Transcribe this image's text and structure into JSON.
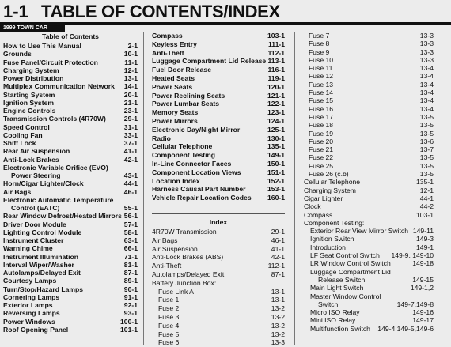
{
  "header": {
    "section": "1-1",
    "title": "TABLE OF CONTENTS/INDEX",
    "vehicle": "1999 TOWN CAR"
  },
  "columns": [
    {
      "sections": [
        {
          "heading": "Table of Contents",
          "entries": [
            {
              "lines": [
                "How to Use This Manual"
              ],
              "page": "2-1"
            },
            {
              "lines": [
                "Grounds"
              ],
              "page": "10-1"
            },
            {
              "lines": [
                "Fuse Panel/Circuit Protection"
              ],
              "page": "11-1"
            },
            {
              "lines": [
                "Charging System"
              ],
              "page": "12-1"
            },
            {
              "lines": [
                "Power Distribution"
              ],
              "page": "13-1"
            },
            {
              "lines": [
                "Multiplex Communication Network"
              ],
              "page": "14-1"
            },
            {
              "lines": [
                "Starting System"
              ],
              "page": "20-1"
            },
            {
              "lines": [
                "Ignition System"
              ],
              "page": "21-1"
            },
            {
              "lines": [
                "Engine Controls"
              ],
              "page": "23-1"
            },
            {
              "lines": [
                "Transmission Controls (4R70W)"
              ],
              "page": "29-1"
            },
            {
              "lines": [
                "Speed Control"
              ],
              "page": "31-1"
            },
            {
              "lines": [
                "Cooling Fan"
              ],
              "page": "33-1"
            },
            {
              "lines": [
                "Shift Lock"
              ],
              "page": "37-1"
            },
            {
              "lines": [
                "Rear Air Suspension"
              ],
              "page": "41-1"
            },
            {
              "lines": [
                "Anti-Lock Brakes"
              ],
              "page": "42-1"
            },
            {
              "lines": [
                "Electronic Variable Orifice (EVO)",
                "Power Steering"
              ],
              "page": "43-1"
            },
            {
              "lines": [
                "Horn/Cigar Lighter/Clock"
              ],
              "page": "44-1"
            },
            {
              "lines": [
                "Air Bags"
              ],
              "page": "46-1"
            },
            {
              "lines": [
                "Electronic Automatic Temperature",
                "Control (EATC)"
              ],
              "page": "55-1"
            },
            {
              "lines": [
                "Rear Window Defrost/Heated Mirrors"
              ],
              "page": "56-1"
            },
            {
              "lines": [
                "Driver Door Module"
              ],
              "page": "57-1"
            },
            {
              "lines": [
                "Lighting Control Module"
              ],
              "page": "58-1"
            },
            {
              "lines": [
                "Instrument Cluster"
              ],
              "page": "63-1"
            },
            {
              "lines": [
                "Warning Chime"
              ],
              "page": "66-1"
            },
            {
              "lines": [
                "Instrument Illumination"
              ],
              "page": "71-1"
            },
            {
              "lines": [
                "Interval Wiper/Washer"
              ],
              "page": "81-1"
            },
            {
              "lines": [
                "Autolamps/Delayed Exit"
              ],
              "page": "87-1"
            },
            {
              "lines": [
                "Courtesy Lamps"
              ],
              "page": "89-1"
            },
            {
              "lines": [
                "Turn/Stop/Hazard Lamps"
              ],
              "page": "90-1"
            },
            {
              "lines": [
                "Cornering Lamps"
              ],
              "page": "91-1"
            },
            {
              "lines": [
                "Exterior Lamps"
              ],
              "page": "92-1"
            },
            {
              "lines": [
                "Reversing Lamps"
              ],
              "page": "93-1"
            },
            {
              "lines": [
                "Power Windows"
              ],
              "page": "100-1"
            },
            {
              "lines": [
                "Roof Opening Panel"
              ],
              "page": "101-1"
            }
          ]
        }
      ]
    },
    {
      "sections": [
        {
          "entries": [
            {
              "lines": [
                "Compass"
              ],
              "page": "103-1"
            },
            {
              "lines": [
                "Keyless Entry"
              ],
              "page": "111-1"
            },
            {
              "lines": [
                "Anti-Theft"
              ],
              "page": "112-1"
            },
            {
              "lines": [
                "Luggage Compartment Lid Release"
              ],
              "page": "113-1"
            },
            {
              "lines": [
                "Fuel Door Release"
              ],
              "page": "116-1"
            },
            {
              "lines": [
                "Heated Seats"
              ],
              "page": "119-1"
            },
            {
              "lines": [
                "Power Seats"
              ],
              "page": "120-1"
            },
            {
              "lines": [
                "Power Reclining Seats"
              ],
              "page": "121-1"
            },
            {
              "lines": [
                "Power Lumbar Seats"
              ],
              "page": "122-1"
            },
            {
              "lines": [
                "Memory Seats"
              ],
              "page": "123-1"
            },
            {
              "lines": [
                "Power Mirrors"
              ],
              "page": "124-1"
            },
            {
              "lines": [
                "Electronic Day/Night Mirror"
              ],
              "page": "125-1"
            },
            {
              "lines": [
                "Radio"
              ],
              "page": "130-1"
            },
            {
              "lines": [
                "Cellular Telephone"
              ],
              "page": "135-1"
            },
            {
              "lines": [
                "Component Testing"
              ],
              "page": "149-1"
            },
            {
              "lines": [
                "In-Line Connector Faces"
              ],
              "page": "150-1"
            },
            {
              "lines": [
                "Component Location Views"
              ],
              "page": "151-1"
            },
            {
              "lines": [
                "Location Index"
              ],
              "page": "152-1"
            },
            {
              "lines": [
                "Harness Causal Part Number"
              ],
              "page": "153-1"
            },
            {
              "lines": [
                "Vehicle Repair Location Codes"
              ],
              "page": "160-1"
            }
          ]
        },
        {
          "heading": "Index",
          "entries": [
            {
              "lines": [
                "4R70W Transmission"
              ],
              "page": "29-1"
            },
            {
              "lines": [
                "Air Bags"
              ],
              "page": "46-1"
            },
            {
              "lines": [
                "Air Suspension"
              ],
              "page": "41-1"
            },
            {
              "lines": [
                "Anti-Lock Brakes (ABS)"
              ],
              "page": "42-1"
            },
            {
              "lines": [
                "Anti-Theft"
              ],
              "page": "112-1"
            },
            {
              "lines": [
                "Autolamps/Delayed Exit"
              ],
              "page": "87-1"
            },
            {
              "lines": [
                "Battery Junction Box:"
              ],
              "entries": [
                {
                  "lines": [
                    "Fuse Link A"
                  ],
                  "page": "13-1"
                },
                {
                  "lines": [
                    "Fuse 1"
                  ],
                  "page": "13-1"
                },
                {
                  "lines": [
                    "Fuse 2"
                  ],
                  "page": "13-2"
                },
                {
                  "lines": [
                    "Fuse 3"
                  ],
                  "page": "13-2"
                },
                {
                  "lines": [
                    "Fuse 4"
                  ],
                  "page": "13-2"
                },
                {
                  "lines": [
                    "Fuse 5"
                  ],
                  "page": "13-2"
                },
                {
                  "lines": [
                    "Fuse 6"
                  ],
                  "page": "13-3"
                }
              ]
            }
          ]
        }
      ]
    },
    {
      "sections": [
        {
          "entries": [
            {
              "entries": [
                {
                  "lines": [
                    "Fuse 7"
                  ],
                  "page": "13-3"
                },
                {
                  "lines": [
                    "Fuse 8"
                  ],
                  "page": "13-3"
                },
                {
                  "lines": [
                    "Fuse 9"
                  ],
                  "page": "13-3"
                },
                {
                  "lines": [
                    "Fuse 10"
                  ],
                  "page": "13-3"
                },
                {
                  "lines": [
                    "Fuse 11"
                  ],
                  "page": "13-4"
                },
                {
                  "lines": [
                    "Fuse 12"
                  ],
                  "page": "13-4"
                },
                {
                  "lines": [
                    "Fuse 13"
                  ],
                  "page": "13-4"
                },
                {
                  "lines": [
                    "Fuse 14"
                  ],
                  "page": "13-4"
                },
                {
                  "lines": [
                    "Fuse 15"
                  ],
                  "page": "13-4"
                },
                {
                  "lines": [
                    "Fuse 16"
                  ],
                  "page": "13-4"
                },
                {
                  "lines": [
                    "Fuse 17"
                  ],
                  "page": "13-5"
                },
                {
                  "lines": [
                    "Fuse 18"
                  ],
                  "page": "13-5"
                },
                {
                  "lines": [
                    "Fuse 19"
                  ],
                  "page": "13-5"
                },
                {
                  "lines": [
                    "Fuse 20"
                  ],
                  "page": "13-6"
                },
                {
                  "lines": [
                    "Fuse 21"
                  ],
                  "page": "13-7"
                },
                {
                  "lines": [
                    "Fuse 22"
                  ],
                  "page": "13-5"
                },
                {
                  "lines": [
                    "Fuse 25"
                  ],
                  "page": "13-5"
                },
                {
                  "lines": [
                    "Fuse 26 (c.b)"
                  ],
                  "page": "13-5"
                }
              ]
            },
            {
              "lines": [
                "Cellular Telephone"
              ],
              "page": "135-1"
            },
            {
              "lines": [
                "Charging System"
              ],
              "page": "12-1"
            },
            {
              "lines": [
                "Cigar Lighter"
              ],
              "page": "44-1"
            },
            {
              "lines": [
                "Clock"
              ],
              "page": "44-2"
            },
            {
              "lines": [
                "Compass"
              ],
              "page": "103-1"
            },
            {
              "lines": [
                "Component Testing:"
              ],
              "entries": [
                {
                  "lines": [
                    "Exterior Rear View Mirror Switch"
                  ],
                  "page": "149-11"
                },
                {
                  "lines": [
                    "Ignition Switch"
                  ],
                  "page": "149-3"
                },
                {
                  "lines": [
                    "Introduction"
                  ],
                  "page": "149-1"
                },
                {
                  "lines": [
                    "LF Seat Control Switch"
                  ],
                  "page": "149-9, 149-10"
                },
                {
                  "lines": [
                    "LR Window Control Switch"
                  ],
                  "page": "149-18"
                },
                {
                  "lines": [
                    "Luggage Compartment Lid",
                    "Release Switch"
                  ],
                  "page": "149-15"
                },
                {
                  "lines": [
                    "Main Light Switch"
                  ],
                  "page": "149-1,2"
                },
                {
                  "lines": [
                    "Master Window Control",
                    "Switch"
                  ],
                  "page": "149-7,149-8"
                },
                {
                  "lines": [
                    "Micro ISO Relay"
                  ],
                  "page": "149-16"
                },
                {
                  "lines": [
                    "Mini ISO Relay"
                  ],
                  "page": "149-17"
                },
                {
                  "lines": [
                    "Multifunction Switch"
                  ],
                  "page": "149-4,149-5,149-6"
                }
              ]
            }
          ]
        }
      ]
    }
  ]
}
